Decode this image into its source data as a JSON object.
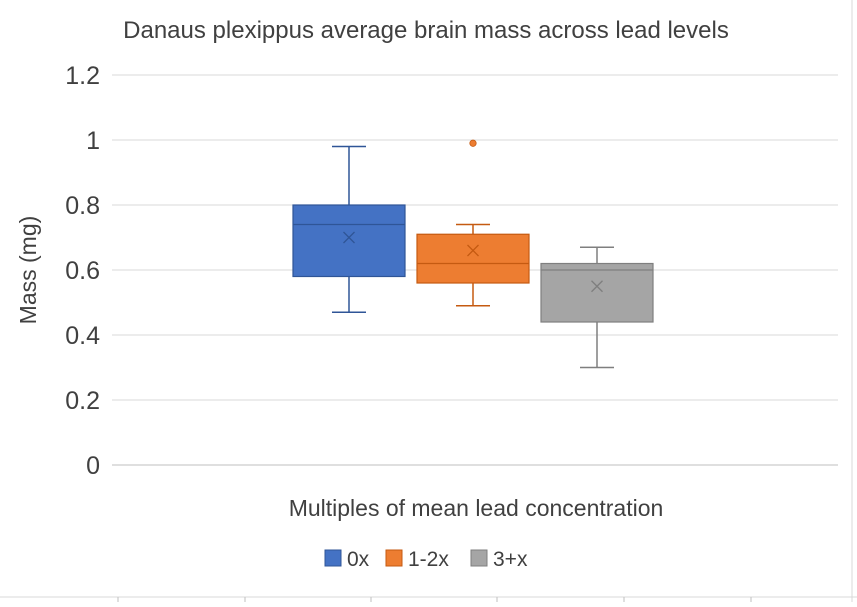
{
  "chart_data": {
    "type": "box",
    "title": "Danaus plexippus average brain mass across lead levels",
    "xlabel": "Multiples of mean lead concentration",
    "ylabel": "Mass (mg)",
    "ylim": [
      0,
      1.2
    ],
    "yticks": [
      "0",
      "0.2",
      "0.4",
      "0.6",
      "0.8",
      "1",
      "1.2"
    ],
    "grid": true,
    "legend_position": "bottom",
    "series": [
      {
        "name": "0x",
        "color": "#4472C4",
        "edge": "#2F5597",
        "min": 0.47,
        "q1": 0.58,
        "median": 0.74,
        "q3": 0.8,
        "max": 0.98,
        "mean": 0.7,
        "outliers": []
      },
      {
        "name": "1-2x",
        "color": "#ED7D31",
        "edge": "#C55A11",
        "min": 0.49,
        "q1": 0.56,
        "median": 0.62,
        "q3": 0.71,
        "max": 0.74,
        "mean": 0.66,
        "outliers": [
          0.99
        ]
      },
      {
        "name": "3+x",
        "color": "#A5A5A5",
        "edge": "#7F7F7F",
        "min": 0.3,
        "q1": 0.44,
        "median": 0.6,
        "q3": 0.62,
        "max": 0.67,
        "mean": 0.55,
        "outliers": []
      }
    ]
  }
}
